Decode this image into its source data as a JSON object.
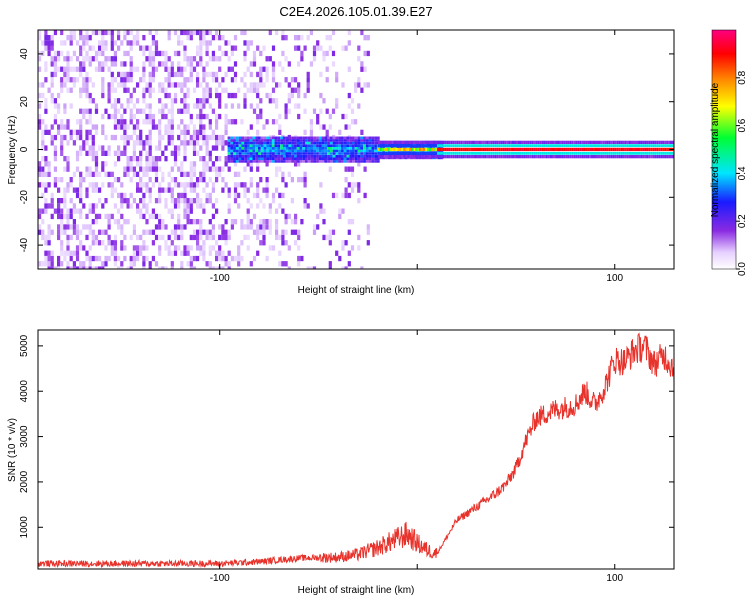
{
  "title": "C2E4.2026.105.01.39.E27",
  "chart_data": [
    {
      "type": "heatmap",
      "xlabel": "Height of straight line (km)",
      "ylabel": "Frequency (Hz)",
      "xlim": [
        -192,
        130
      ],
      "ylim": [
        -50,
        50
      ],
      "xticks": [
        -100,
        0,
        100
      ],
      "xtick_labels": [
        "-100",
        "",
        "100"
      ],
      "yticks": [
        -40,
        -20,
        0,
        20,
        40
      ],
      "ytick_labels": [
        "-40",
        "-20",
        "0",
        "20",
        "40"
      ],
      "grid": false,
      "colorbar": {
        "label": "Normalized spectral amplitude",
        "range": [
          0,
          1
        ],
        "ticks": [
          0,
          0.2,
          0.4,
          0.6,
          0.8
        ],
        "tick_labels": [
          "0.0",
          "0.2",
          "0.4",
          "0.6",
          "0.8"
        ],
        "placement": "right"
      },
      "features": [
        {
          "x_range": [
            -192,
            -30
          ],
          "freq_range": [
            -50,
            50
          ],
          "amplitude": "low, scattered"
        },
        {
          "x_range": [
            -95,
            10
          ],
          "freq_range": [
            -6,
            6
          ],
          "amplitude": "medium (0.1-0.5)"
        },
        {
          "x_range": [
            10,
            130
          ],
          "freq": 0,
          "amplitude": "high (~0.9)"
        }
      ]
    },
    {
      "type": "line",
      "xlabel": "Height of straight line (km)",
      "ylabel": "SNR (10 * v/v)",
      "xlim": [
        -192,
        130
      ],
      "ylim": [
        80,
        5350
      ],
      "xticks": [
        -100,
        0,
        100
      ],
      "xtick_labels": [
        "-100",
        "",
        "100"
      ],
      "yticks": [
        1000,
        2000,
        3000,
        4000,
        5000
      ],
      "ytick_labels": [
        "1000",
        "2000",
        "3000",
        "4000",
        "5000"
      ],
      "grid": false,
      "series": [
        {
          "color": "#e8332c",
          "x": [
            -192,
            -150,
            -100,
            -80,
            -70,
            -60,
            -50,
            -40,
            -30,
            -20,
            -10,
            -5,
            0,
            5,
            10,
            20,
            30,
            40,
            45,
            50,
            55,
            60,
            65,
            70,
            75,
            80,
            85,
            90,
            95,
            100,
            105,
            110,
            115,
            120,
            125,
            130
          ],
          "y": [
            200,
            200,
            200,
            240,
            280,
            320,
            330,
            340,
            400,
            550,
            750,
            850,
            650,
            500,
            420,
            1150,
            1450,
            1750,
            1950,
            2300,
            2900,
            3400,
            3500,
            3600,
            3650,
            3700,
            4000,
            3700,
            4100,
            4700,
            4650,
            4900,
            5000,
            4600,
            4800,
            4500
          ]
        }
      ]
    }
  ]
}
